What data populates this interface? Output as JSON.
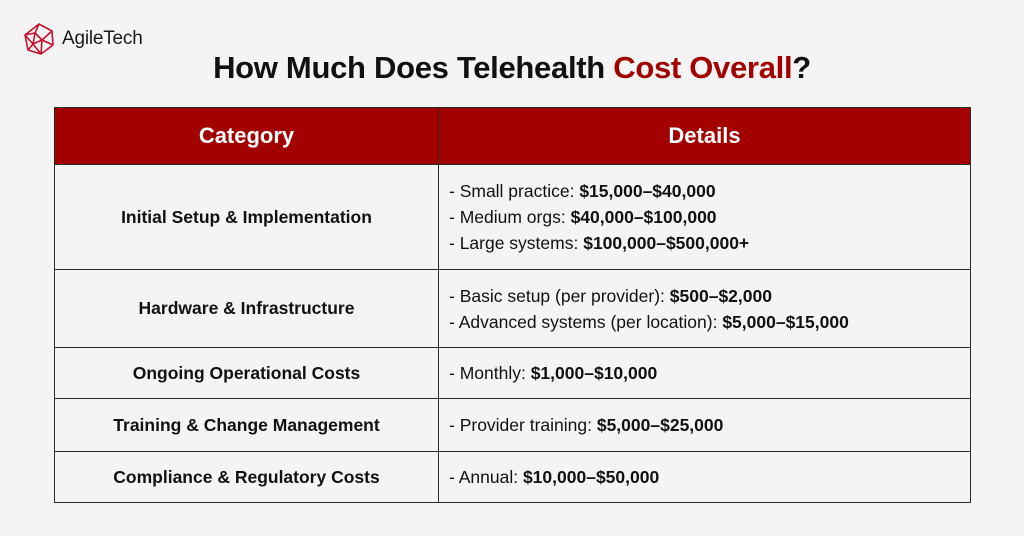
{
  "brand": {
    "name_part1": "Agile",
    "name_part2": "Tech",
    "logo_icon": "geometric-sphere-icon",
    "logo_color": "#c8102e"
  },
  "title": {
    "prefix": "How Much Does Telehealth ",
    "accent": "Cost Overall",
    "suffix": "?",
    "accent_color": "#a30000"
  },
  "table": {
    "header_color": "#a30000",
    "headers": [
      "Category",
      "Details"
    ],
    "rows": [
      {
        "category": "Initial Setup & Implementation",
        "details": [
          {
            "label": "- Small practice: ",
            "value": "$15,000–$40,000"
          },
          {
            "label": "- Medium orgs: ",
            "value": "$40,000–$100,000"
          },
          {
            "label": "- Large systems: ",
            "value": "$100,000–$500,000+"
          }
        ]
      },
      {
        "category": "Hardware & Infrastructure",
        "details": [
          {
            "label": "- Basic setup (per provider): ",
            "value": "$500–$2,000"
          },
          {
            "label": "- Advanced systems (per location): ",
            "value": "$5,000–$15,000"
          }
        ]
      },
      {
        "category": "Ongoing Operational Costs",
        "details": [
          {
            "label": "- Monthly: ",
            "value": "$1,000–$10,000"
          }
        ]
      },
      {
        "category": "Training & Change Management",
        "details": [
          {
            "label": "- Provider training: ",
            "value": "$5,000–$25,000"
          }
        ]
      },
      {
        "category": "Compliance & Regulatory Costs",
        "details": [
          {
            "label": "- Annual: ",
            "value": "$10,000–$50,000"
          }
        ]
      }
    ]
  }
}
